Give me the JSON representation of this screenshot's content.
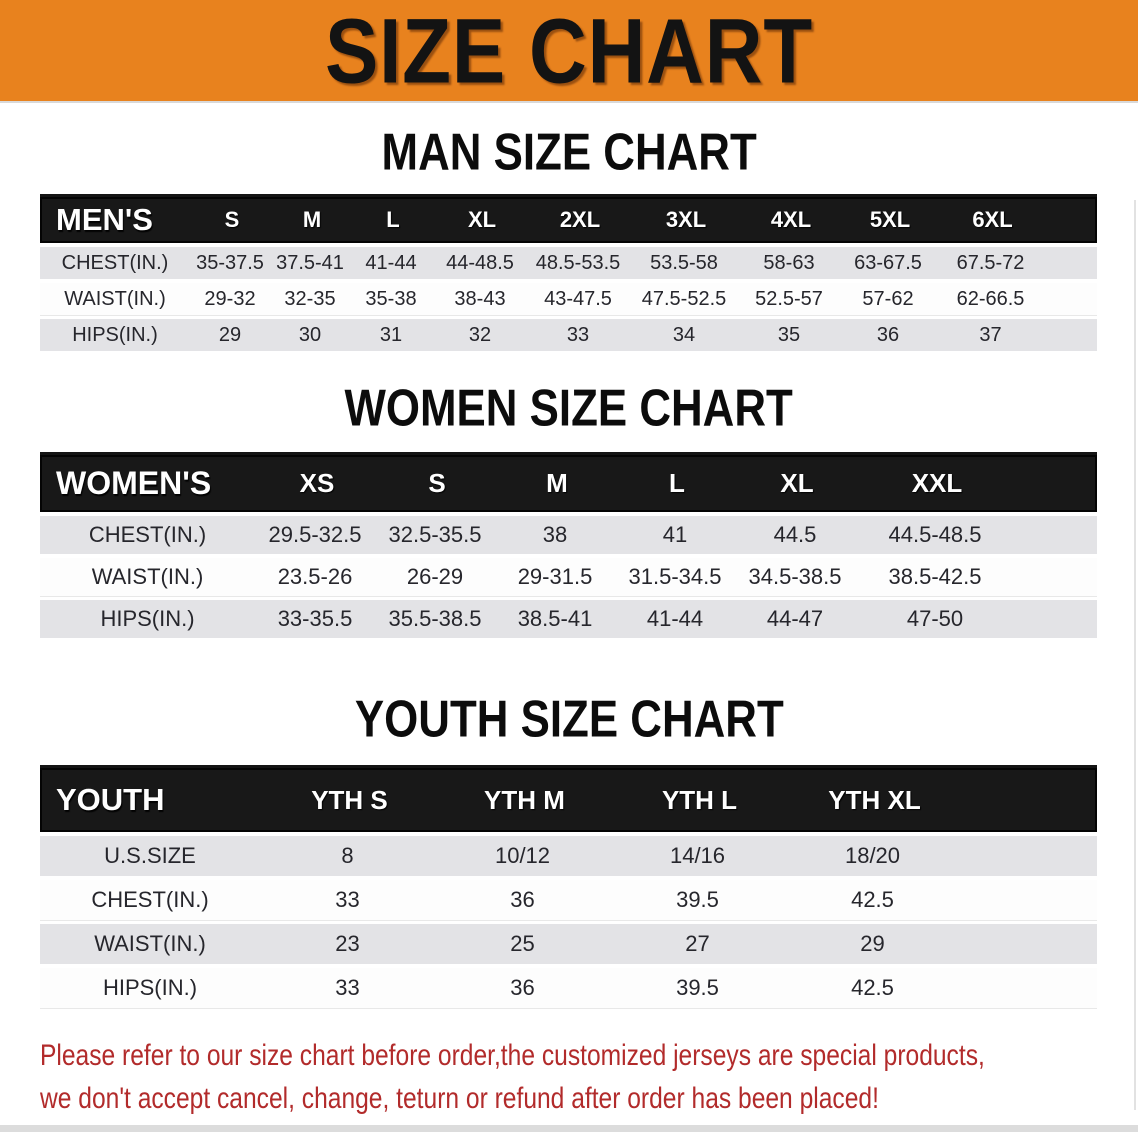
{
  "banner": {
    "title": "SIZE CHART",
    "bg_color": "#E8821E",
    "title_color": "#131313"
  },
  "sections": [
    {
      "heading": "MAN SIZE CHART",
      "label": "MEN'S",
      "sizes": [
        "S",
        "M",
        "L",
        "XL",
        "2XL",
        "3XL",
        "4XL",
        "5XL",
        "6XL"
      ],
      "rows": [
        {
          "label": "CHEST(IN.)",
          "values": [
            "35-37.5",
            "37.5-41",
            "41-44",
            "44-48.5",
            "48.5-53.5",
            "53.5-58",
            "58-63",
            "63-67.5",
            "67.5-72"
          ]
        },
        {
          "label": "WAIST(IN.)",
          "values": [
            "29-32",
            "32-35",
            "35-38",
            "38-43",
            "43-47.5",
            "47.5-52.5",
            "52.5-57",
            "57-62",
            "62-66.5"
          ]
        },
        {
          "label": "HIPS(IN.)",
          "values": [
            "29",
            "30",
            "31",
            "32",
            "33",
            "34",
            "35",
            "36",
            "37"
          ]
        }
      ]
    },
    {
      "heading": "WOMEN SIZE CHART",
      "label": "WOMEN'S",
      "sizes": [
        "XS",
        "S",
        "M",
        "L",
        "XL",
        "XXL"
      ],
      "rows": [
        {
          "label": "CHEST(IN.)",
          "values": [
            "29.5-32.5",
            "32.5-35.5",
            "38",
            "41",
            "44.5",
            "44.5-48.5"
          ]
        },
        {
          "label": "WAIST(IN.)",
          "values": [
            "23.5-26",
            "26-29",
            "29-31.5",
            "31.5-34.5",
            "34.5-38.5",
            "38.5-42.5"
          ]
        },
        {
          "label": "HIPS(IN.)",
          "values": [
            "33-35.5",
            "35.5-38.5",
            "38.5-41",
            "41-44",
            "44-47",
            "47-50"
          ]
        }
      ]
    },
    {
      "heading": "YOUTH SIZE CHART",
      "label": "YOUTH",
      "sizes": [
        "YTH S",
        "YTH M",
        "YTH L",
        "YTH XL"
      ],
      "rows": [
        {
          "label": "U.S.SIZE",
          "values": [
            "8",
            "10/12",
            "14/16",
            "18/20"
          ]
        },
        {
          "label": "CHEST(IN.)",
          "values": [
            "33",
            "36",
            "39.5",
            "42.5"
          ]
        },
        {
          "label": "WAIST(IN.)",
          "values": [
            "23",
            "25",
            "27",
            "29"
          ]
        },
        {
          "label": "HIPS(IN.)",
          "values": [
            "33",
            "36",
            "39.5",
            "42.5"
          ]
        }
      ]
    }
  ],
  "footer": {
    "line1": "Please refer to our size chart before order,the customized jerseys are special products,",
    "line2": "we don't accept cancel, change, teturn or refund after order has been placed!",
    "color": "#B22B2B"
  },
  "table_colors": {
    "header_bg": "#181818",
    "shaded_row_bg": "#E3E3E6",
    "plain_row_bg": "#FDFDFD"
  }
}
